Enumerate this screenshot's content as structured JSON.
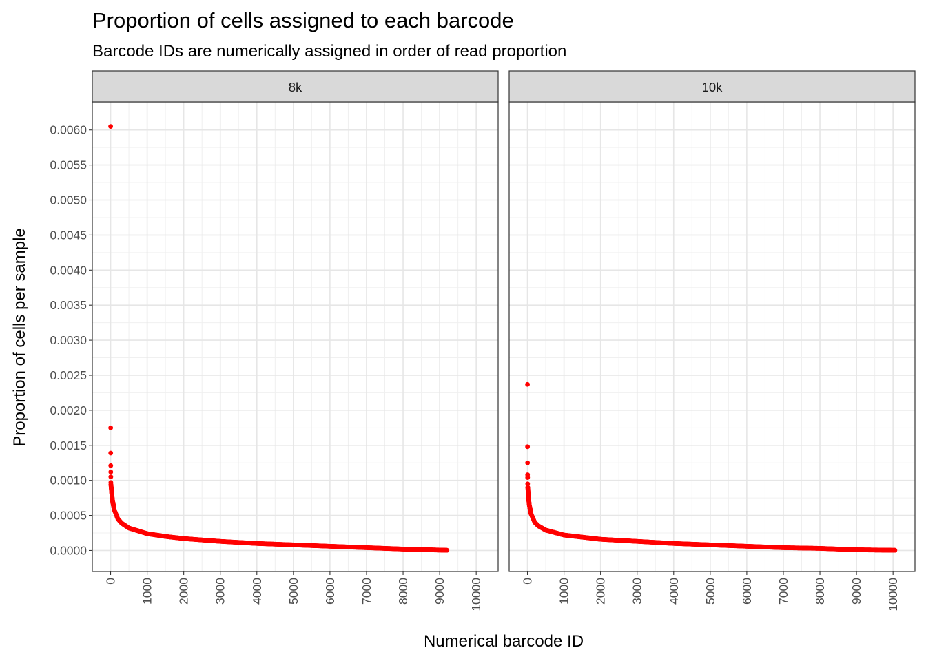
{
  "chart_data": {
    "type": "scatter",
    "title": "Proportion of cells assigned to each barcode",
    "subtitle": "Barcode IDs are numerically assigned in order of read proportion",
    "xlabel": "Numerical barcode ID",
    "ylabel": "Proportion of cells per sample",
    "point_color": "#ff0000",
    "grid": true,
    "xlim": [
      -500,
      10600
    ],
    "ylim": [
      -0.0003,
      0.0064
    ],
    "x_ticks": [
      "0",
      "1000",
      "2000",
      "3000",
      "4000",
      "5000",
      "6000",
      "7000",
      "8000",
      "9000",
      "10000"
    ],
    "y_ticks": [
      "0.0000",
      "0.0005",
      "0.0010",
      "0.0015",
      "0.0020",
      "0.0025",
      "0.0030",
      "0.0035",
      "0.0040",
      "0.0045",
      "0.0050",
      "0.0055",
      "0.0060"
    ],
    "panels": [
      {
        "label": "8k",
        "n_barcodes": 9200,
        "top_points": [
          [
            1,
            0.00605
          ],
          [
            2,
            0.00175
          ],
          [
            3,
            0.00139
          ],
          [
            4,
            0.00121
          ],
          [
            5,
            0.00112
          ],
          [
            6,
            0.00105
          ],
          [
            7,
            0.00097
          ]
        ],
        "curve": [
          [
            10,
            0.00094
          ],
          [
            25,
            0.00085
          ],
          [
            50,
            0.00072
          ],
          [
            100,
            0.00058
          ],
          [
            200,
            0.00045
          ],
          [
            300,
            0.00039
          ],
          [
            500,
            0.00032
          ],
          [
            1000,
            0.00024
          ],
          [
            1500,
            0.0002
          ],
          [
            2000,
            0.00017
          ],
          [
            3000,
            0.00013
          ],
          [
            4000,
            0.0001
          ],
          [
            5000,
            8e-05
          ],
          [
            6000,
            6e-05
          ],
          [
            7000,
            4e-05
          ],
          [
            8000,
            2e-05
          ],
          [
            9200,
            3e-06
          ]
        ]
      },
      {
        "label": "10k",
        "n_barcodes": 10050,
        "top_points": [
          [
            1,
            0.00237
          ],
          [
            2,
            0.00148
          ],
          [
            3,
            0.00125
          ],
          [
            4,
            0.00108
          ],
          [
            5,
            0.00104
          ],
          [
            6,
            0.00095
          ]
        ],
        "curve": [
          [
            10,
            0.0009
          ],
          [
            25,
            0.00078
          ],
          [
            50,
            0.00065
          ],
          [
            100,
            0.00052
          ],
          [
            200,
            0.0004
          ],
          [
            300,
            0.00035
          ],
          [
            500,
            0.00029
          ],
          [
            1000,
            0.00022
          ],
          [
            1500,
            0.00019
          ],
          [
            2000,
            0.00016
          ],
          [
            3000,
            0.00013
          ],
          [
            4000,
            0.0001
          ],
          [
            5000,
            8e-05
          ],
          [
            6000,
            6e-05
          ],
          [
            7000,
            4e-05
          ],
          [
            8000,
            3e-05
          ],
          [
            9000,
            1e-05
          ],
          [
            10050,
            3e-06
          ]
        ]
      }
    ]
  }
}
